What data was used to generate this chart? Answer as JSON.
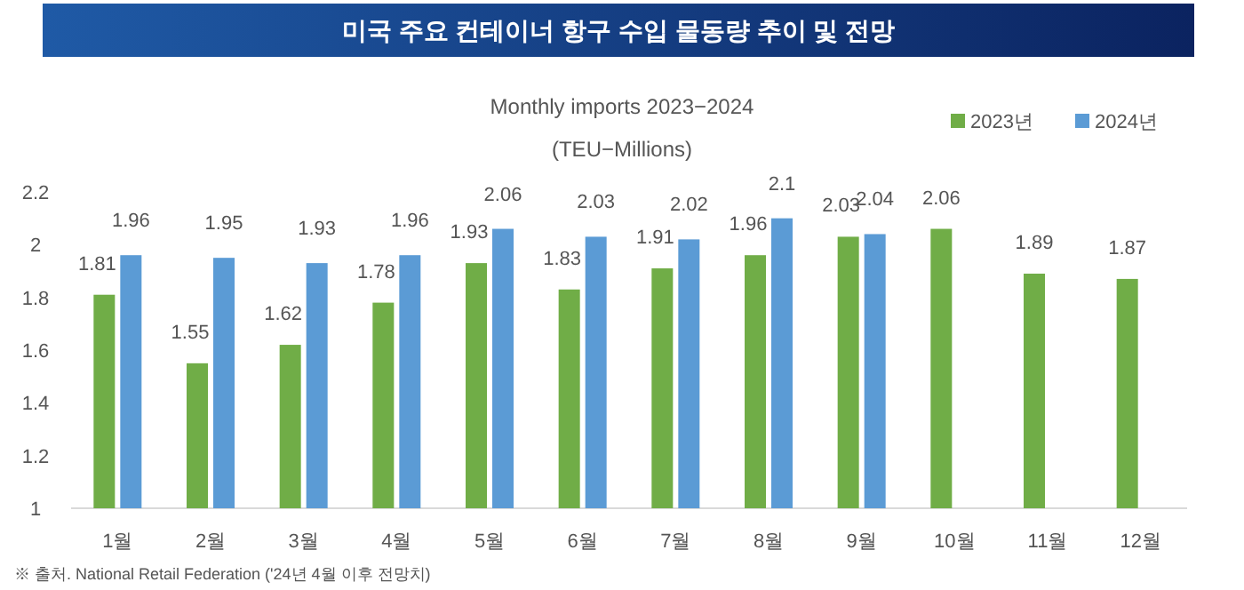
{
  "chart_data": {
    "type": "bar",
    "title": "미국 주요 컨테이너 항구 수입 물동량 추이 및 전망",
    "subtitle": "Monthly imports 2023−2024",
    "ylabel": "(TEU−Millions)",
    "categories": [
      "1월",
      "2월",
      "3월",
      "4월",
      "5월",
      "6월",
      "7월",
      "8월",
      "9월",
      "10월",
      "11월",
      "12월"
    ],
    "series": [
      {
        "name": "2023년",
        "color": "#70ad47",
        "values": [
          1.81,
          1.55,
          1.62,
          1.78,
          1.93,
          1.83,
          1.91,
          1.96,
          2.03,
          2.06,
          1.89,
          1.87
        ]
      },
      {
        "name": "2024년",
        "color": "#5b9bd5",
        "values": [
          1.96,
          1.95,
          1.93,
          1.96,
          2.06,
          2.03,
          2.02,
          2.1,
          2.04,
          null,
          null,
          null
        ]
      }
    ],
    "ylim": [
      1,
      2.2
    ],
    "yticks": [
      1,
      1.2,
      1.4,
      1.6,
      1.8,
      2,
      2.2
    ],
    "grid": false,
    "legend": "top right",
    "data_labels": true,
    "annotations": [
      "※ 출처. National Retail Federation ('24년 4월 이후 전망치)"
    ]
  }
}
